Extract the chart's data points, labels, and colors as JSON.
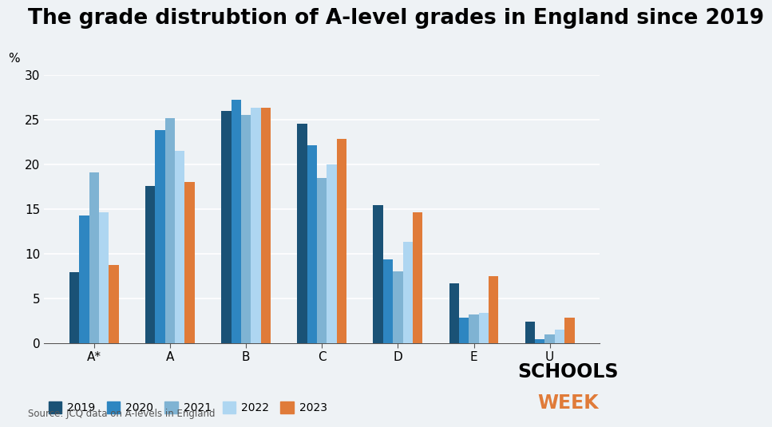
{
  "title": "The grade distrubtion of A-level grades in England since 2019",
  "ylabel": "%",
  "source": "Source: JCQ data on A-levels in England",
  "categories": [
    "A*",
    "A",
    "B",
    "C",
    "D",
    "E",
    "U"
  ],
  "years": [
    "2019",
    "2020",
    "2021",
    "2022",
    "2023"
  ],
  "colors": [
    "#1a5276",
    "#2e86c1",
    "#7fb3d3",
    "#aed6f1",
    "#e07b39"
  ],
  "data": {
    "2019": [
      7.9,
      17.6,
      26.0,
      24.5,
      15.4,
      6.7,
      2.4
    ],
    "2020": [
      14.3,
      23.8,
      27.2,
      22.1,
      9.4,
      2.8,
      0.4
    ],
    "2021": [
      19.1,
      25.2,
      25.5,
      18.5,
      8.0,
      3.2,
      1.0
    ],
    "2022": [
      14.6,
      21.5,
      26.3,
      20.0,
      11.3,
      3.4,
      1.5
    ],
    "2023": [
      8.7,
      18.0,
      26.3,
      22.8,
      14.6,
      7.5,
      2.8
    ]
  },
  "ylim": [
    0,
    30
  ],
  "yticks": [
    0,
    5,
    10,
    15,
    20,
    25,
    30
  ],
  "background_color": "#eef2f5",
  "title_fontsize": 19,
  "legend_fontsize": 10,
  "tick_fontsize": 11
}
